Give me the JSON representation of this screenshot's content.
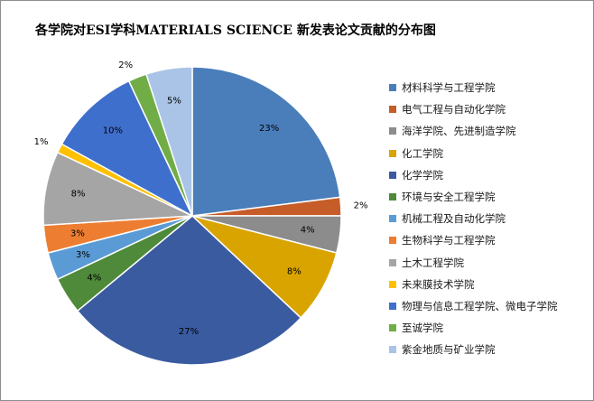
{
  "chart_data": {
    "type": "pie",
    "title": "各学院对ESI学科MATERIALS SCIENCE 新发表论文贡献的分布图",
    "legend_position": "right",
    "start_angle": "12 o'clock",
    "direction": "clockwise",
    "slices": [
      {
        "name": "材料科学与工程学院",
        "value": 23,
        "label": "23%",
        "color": "#4A7EBB"
      },
      {
        "name": "电气工程与自动化学院",
        "value": 2,
        "label": "2%",
        "color": "#C65D28"
      },
      {
        "name": "海洋学院、先进制造学院",
        "value": 4,
        "label": "4%",
        "color": "#8C8C8C"
      },
      {
        "name": "化工学院",
        "value": 8,
        "label": "8%",
        "color": "#D9A400"
      },
      {
        "name": "化学学院",
        "value": 27,
        "label": "27%",
        "color": "#3A5BA0"
      },
      {
        "name": "环境与安全工程学院",
        "value": 4,
        "label": "4%",
        "color": "#4E8A39"
      },
      {
        "name": "机械工程及自动化学院",
        "value": 3,
        "label": "3%",
        "color": "#5B9BD5"
      },
      {
        "name": "生物科学与工程学院",
        "value": 3,
        "label": "3%",
        "color": "#ED7D31"
      },
      {
        "name": "土木工程学院",
        "value": 8,
        "label": "8%",
        "color": "#A5A5A5"
      },
      {
        "name": "未来膜技术学院",
        "value": 1,
        "label": "1%",
        "color": "#FFC000"
      },
      {
        "name": "物理与信息工程学院、微电子学院",
        "value": 10,
        "label": "10%",
        "color": "#3F6FCC"
      },
      {
        "name": "至诚学院",
        "value": 2,
        "label": "2%",
        "color": "#70AD47"
      },
      {
        "name": "紫金地质与矿业学院",
        "value": 5,
        "label": "5%",
        "color": "#A9C4E6"
      }
    ]
  }
}
